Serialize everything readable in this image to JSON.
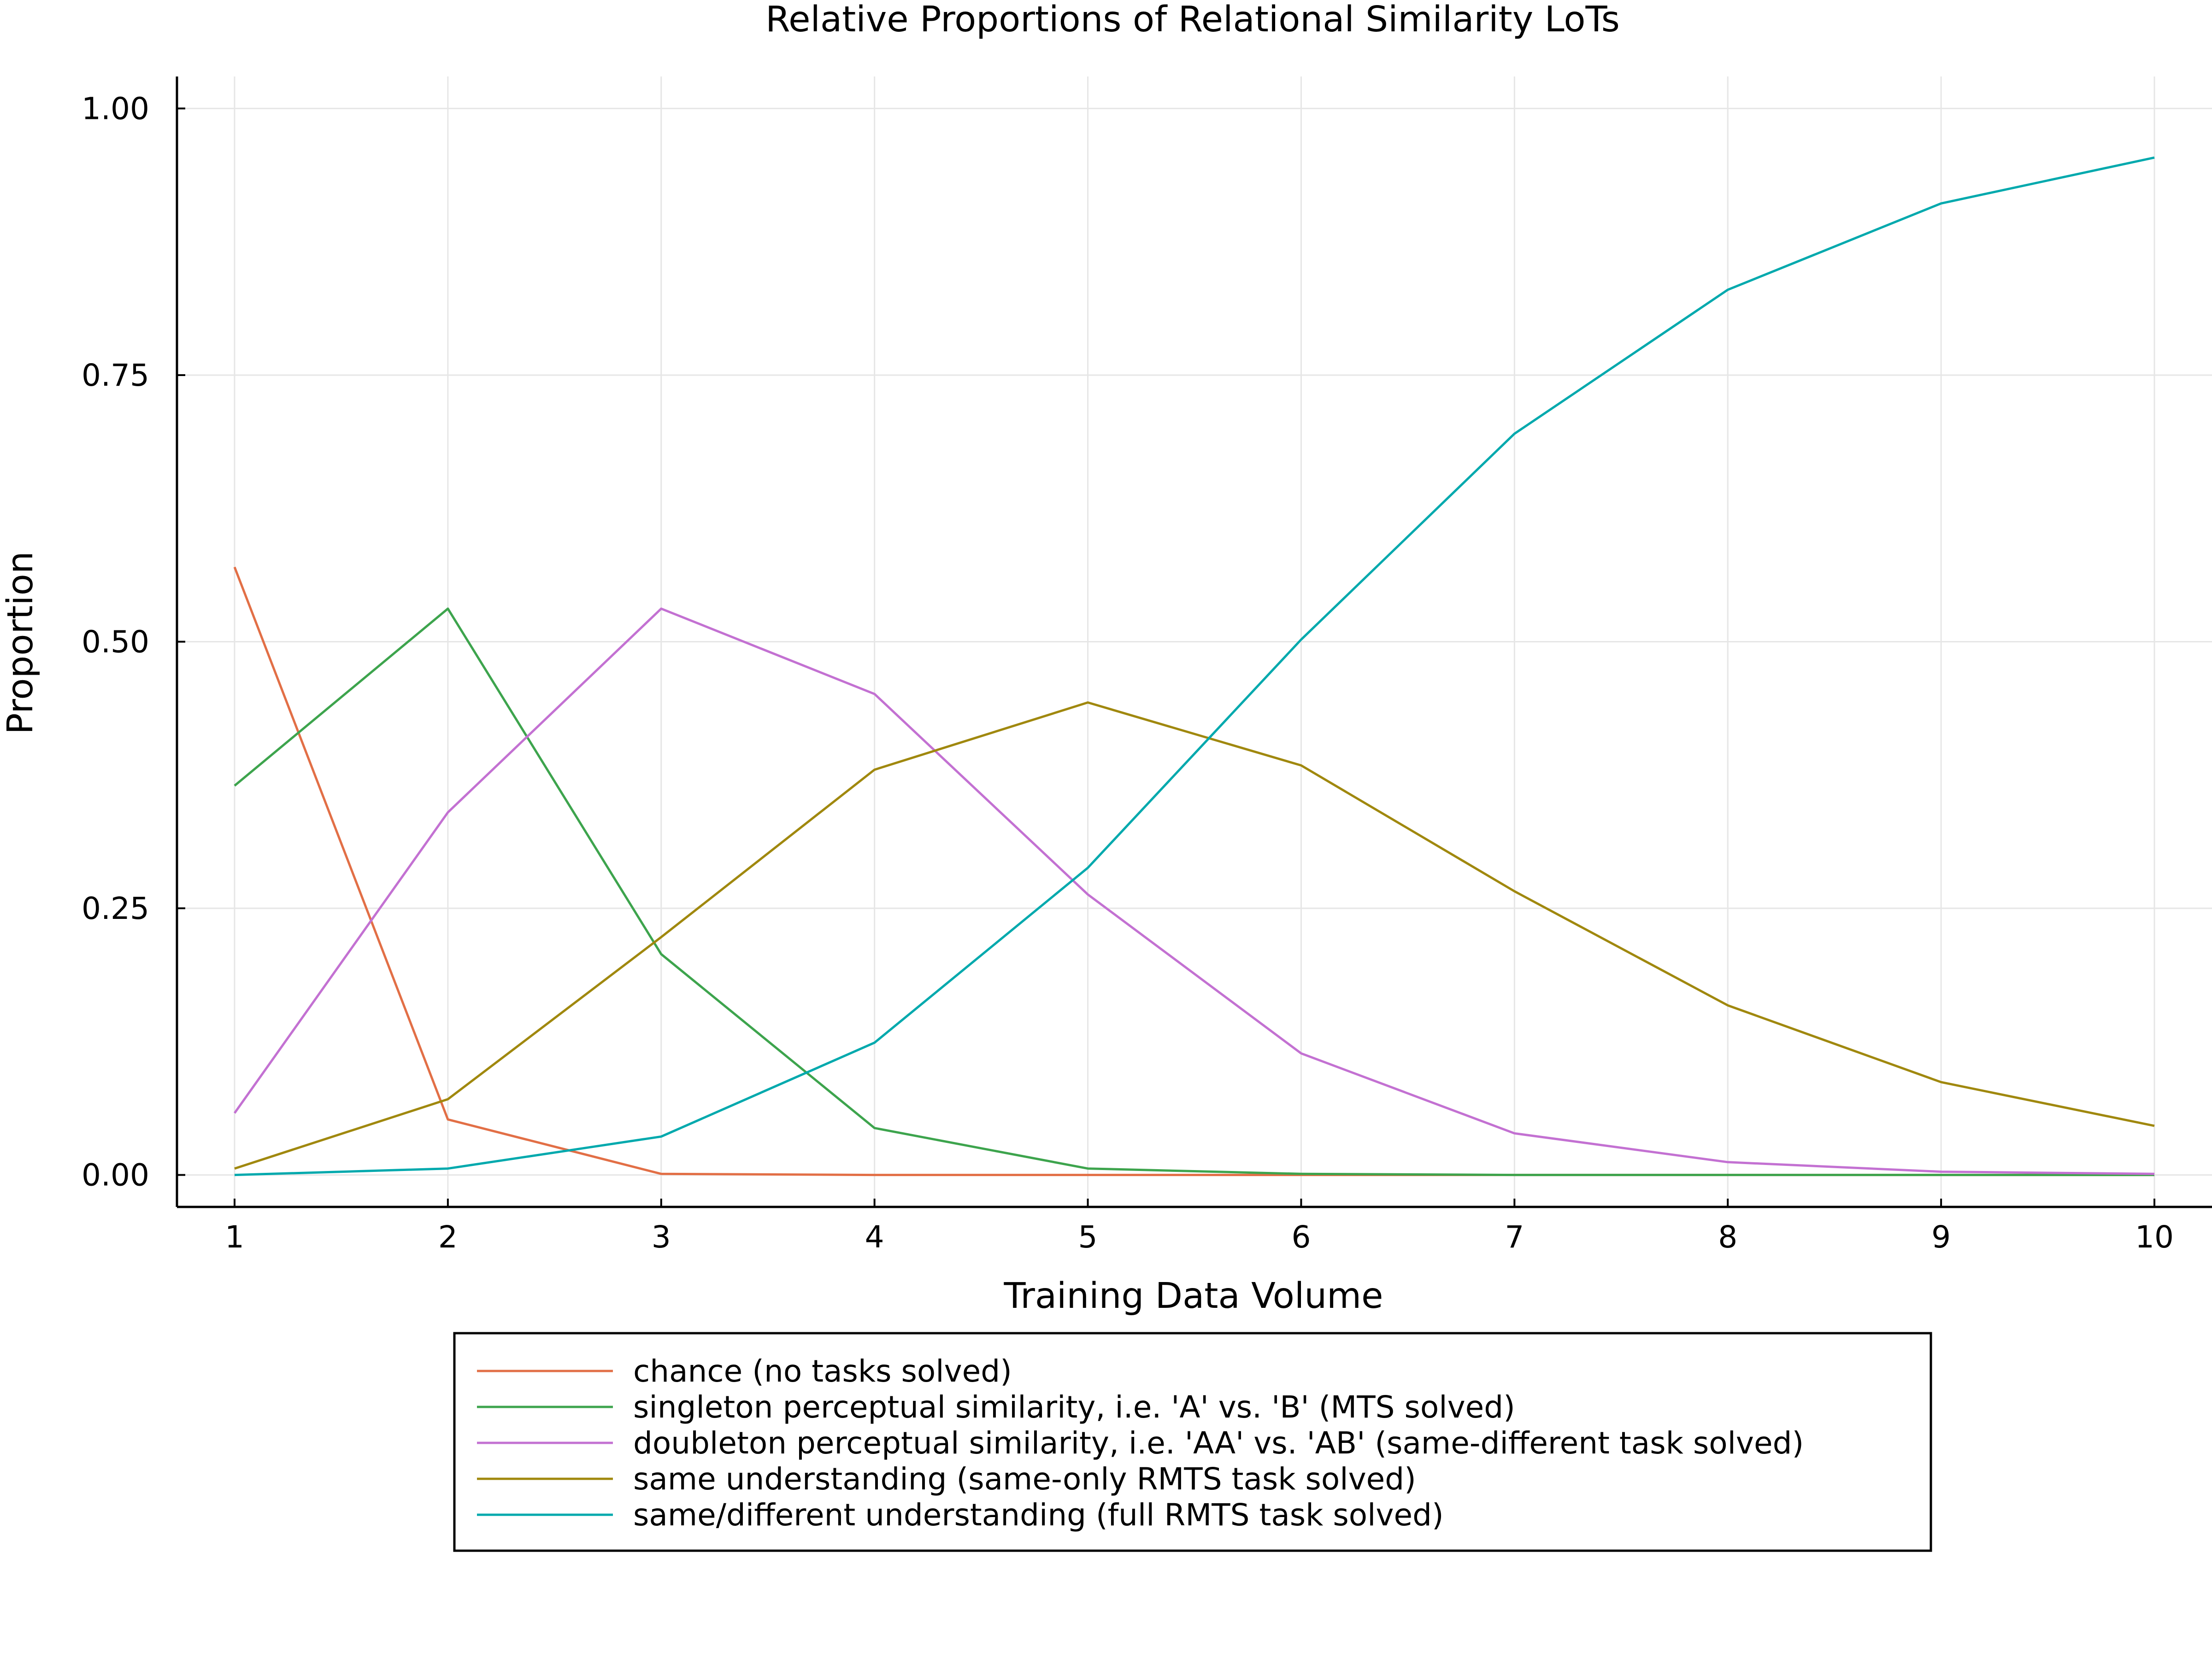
{
  "chart_data": {
    "type": "line",
    "title": "Relative Proportions of Relational Similarity LoTs",
    "xlabel": "Training Data Volume",
    "ylabel": "Proportion",
    "x": [
      1,
      2,
      3,
      4,
      5,
      6,
      7,
      8,
      9,
      10
    ],
    "x_ticks": [
      "1",
      "2",
      "3",
      "4",
      "5",
      "6",
      "7",
      "8",
      "9",
      "10"
    ],
    "y_ticks": [
      "0.00",
      "0.25",
      "0.50",
      "0.75",
      "1.00"
    ],
    "xlim": [
      0.73,
      10.27
    ],
    "ylim": [
      -0.03,
      1.03
    ],
    "grid": true,
    "legend_position": "bottom-center",
    "series": [
      {
        "name": "chance (no tasks solved)",
        "color": "#e26f46",
        "values": [
          0.57,
          0.052,
          0.001,
          0.0,
          0.0,
          0.0,
          0.0,
          0.0,
          0.0,
          0.0
        ]
      },
      {
        "name": "singleton perceptual similarity, i.e. 'A' vs. 'B' (MTS solved)",
        "color": "#3da44d",
        "values": [
          0.365,
          0.531,
          0.207,
          0.044,
          0.006,
          0.001,
          0.0,
          0.0,
          0.0,
          0.0
        ]
      },
      {
        "name": "doubleton perceptual similarity, i.e. 'AA' vs. 'AB' (same-different task solved)",
        "color": "#c371d2",
        "values": [
          0.058,
          0.34,
          0.531,
          0.451,
          0.263,
          0.114,
          0.039,
          0.012,
          0.003,
          0.001
        ]
      },
      {
        "name": "same understanding (same-only RMTS task solved)",
        "color": "#a0880e",
        "values": [
          0.006,
          0.071,
          0.223,
          0.38,
          0.443,
          0.384,
          0.266,
          0.159,
          0.087,
          0.046
        ]
      },
      {
        "name": "same/different understanding (full RMTS task solved)",
        "color": "#00a9ad",
        "values": [
          0.0,
          0.006,
          0.036,
          0.124,
          0.288,
          0.502,
          0.695,
          0.83,
          0.911,
          0.954
        ]
      }
    ]
  }
}
